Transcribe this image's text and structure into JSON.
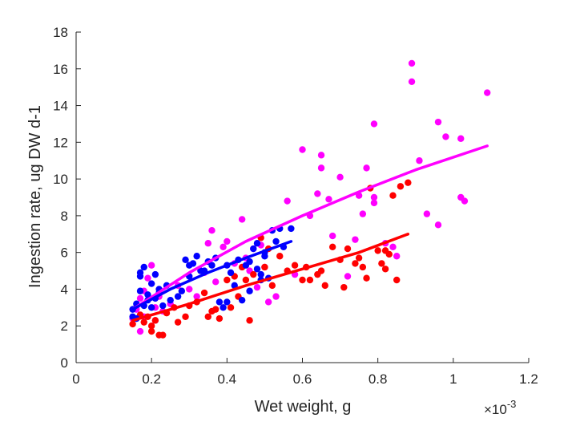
{
  "chart_data": {
    "type": "scatter",
    "title": "",
    "xlabel": "Wet weight, g",
    "ylabel": "Ingestion rate, ug DW d-1",
    "x_exponent_label": "×10",
    "x_exponent_power": "-3",
    "xlim": [
      0,
      1.2
    ],
    "ylim": [
      0,
      18
    ],
    "x_ticks": [
      "0",
      "0.2",
      "0.4",
      "0.6",
      "0.8",
      "1",
      "1.2"
    ],
    "y_ticks": [
      "0",
      "2",
      "4",
      "6",
      "8",
      "10",
      "12",
      "14",
      "16",
      "18"
    ],
    "grid": false,
    "legend": "none",
    "series": [
      {
        "color": "#ff00ff",
        "points": [
          [
            0.15,
            2.4
          ],
          [
            0.16,
            2.9
          ],
          [
            0.17,
            1.7
          ],
          [
            0.17,
            3.5
          ],
          [
            0.18,
            2.5
          ],
          [
            0.18,
            3.9
          ],
          [
            0.19,
            4.6
          ],
          [
            0.2,
            5.3
          ],
          [
            0.21,
            2.3
          ],
          [
            0.21,
            3.0
          ],
          [
            0.22,
            3.6
          ],
          [
            0.23,
            2.8
          ],
          [
            0.25,
            3.2
          ],
          [
            0.27,
            4.2
          ],
          [
            0.3,
            4.0
          ],
          [
            0.32,
            3.6
          ],
          [
            0.34,
            4.9
          ],
          [
            0.35,
            6.5
          ],
          [
            0.36,
            7.2
          ],
          [
            0.37,
            4.4
          ],
          [
            0.39,
            6.3
          ],
          [
            0.4,
            6.6
          ],
          [
            0.42,
            5.4
          ],
          [
            0.44,
            7.8
          ],
          [
            0.45,
            5.7
          ],
          [
            0.47,
            6.2
          ],
          [
            0.48,
            4.1
          ],
          [
            0.49,
            6.4
          ],
          [
            0.51,
            3.3
          ],
          [
            0.53,
            3.6
          ],
          [
            0.56,
            8.8
          ],
          [
            0.58,
            4.8
          ],
          [
            0.6,
            11.6
          ],
          [
            0.62,
            8.0
          ],
          [
            0.64,
            9.2
          ],
          [
            0.65,
            11.3
          ],
          [
            0.65,
            10.6
          ],
          [
            0.67,
            8.9
          ],
          [
            0.68,
            6.9
          ],
          [
            0.7,
            10.1
          ],
          [
            0.72,
            4.7
          ],
          [
            0.74,
            6.7
          ],
          [
            0.75,
            9.1
          ],
          [
            0.76,
            8.1
          ],
          [
            0.77,
            10.6
          ],
          [
            0.79,
            8.7
          ],
          [
            0.79,
            9.0
          ],
          [
            0.79,
            13.0
          ],
          [
            0.85,
            5.8
          ],
          [
            0.89,
            16.3
          ],
          [
            0.89,
            15.3
          ],
          [
            0.91,
            11.0
          ],
          [
            0.93,
            8.1
          ],
          [
            0.96,
            13.1
          ],
          [
            0.96,
            7.5
          ],
          [
            0.98,
            12.3
          ],
          [
            1.02,
            12.2
          ],
          [
            1.02,
            9.0
          ],
          [
            1.03,
            8.8
          ],
          [
            1.09,
            14.7
          ],
          [
            0.82,
            6.5
          ],
          [
            0.84,
            6.3
          ],
          [
            0.5,
            5.2
          ],
          [
            0.46,
            5.0
          ]
        ],
        "fit": [
          [
            0.15,
            2.9
          ],
          [
            0.3,
            4.9
          ],
          [
            0.45,
            6.6
          ],
          [
            0.6,
            8.0
          ],
          [
            0.75,
            9.3
          ],
          [
            0.9,
            10.5
          ],
          [
            1.09,
            11.8
          ]
        ]
      },
      {
        "color": "#ff0000",
        "points": [
          [
            0.15,
            2.1
          ],
          [
            0.16,
            2.4
          ],
          [
            0.17,
            2.6
          ],
          [
            0.18,
            2.2
          ],
          [
            0.19,
            2.5
          ],
          [
            0.2,
            1.7
          ],
          [
            0.2,
            2.0
          ],
          [
            0.21,
            2.3
          ],
          [
            0.22,
            1.5
          ],
          [
            0.23,
            1.5
          ],
          [
            0.24,
            2.7
          ],
          [
            0.26,
            3.0
          ],
          [
            0.27,
            2.2
          ],
          [
            0.29,
            2.5
          ],
          [
            0.3,
            3.1
          ],
          [
            0.32,
            3.3
          ],
          [
            0.34,
            3.8
          ],
          [
            0.35,
            2.5
          ],
          [
            0.36,
            2.8
          ],
          [
            0.37,
            2.9
          ],
          [
            0.38,
            2.4
          ],
          [
            0.4,
            4.5
          ],
          [
            0.41,
            3.0
          ],
          [
            0.42,
            4.7
          ],
          [
            0.43,
            3.6
          ],
          [
            0.44,
            5.2
          ],
          [
            0.45,
            4.5
          ],
          [
            0.46,
            2.3
          ],
          [
            0.47,
            4.8
          ],
          [
            0.49,
            6.8
          ],
          [
            0.5,
            5.2
          ],
          [
            0.51,
            6.2
          ],
          [
            0.52,
            4.2
          ],
          [
            0.54,
            5.8
          ],
          [
            0.56,
            5.0
          ],
          [
            0.58,
            5.3
          ],
          [
            0.6,
            4.5
          ],
          [
            0.61,
            5.2
          ],
          [
            0.62,
            4.5
          ],
          [
            0.64,
            4.8
          ],
          [
            0.65,
            5.0
          ],
          [
            0.66,
            4.2
          ],
          [
            0.68,
            6.3
          ],
          [
            0.7,
            5.6
          ],
          [
            0.71,
            4.1
          ],
          [
            0.72,
            6.2
          ],
          [
            0.74,
            5.4
          ],
          [
            0.76,
            5.2
          ],
          [
            0.77,
            4.6
          ],
          [
            0.78,
            9.5
          ],
          [
            0.8,
            6.1
          ],
          [
            0.81,
            5.4
          ],
          [
            0.82,
            6.1
          ],
          [
            0.83,
            5.9
          ],
          [
            0.84,
            9.1
          ],
          [
            0.85,
            4.5
          ],
          [
            0.86,
            9.6
          ],
          [
            0.88,
            9.8
          ],
          [
            0.82,
            5.1
          ],
          [
            0.75,
            5.7
          ]
        ],
        "fit": [
          [
            0.15,
            2.3
          ],
          [
            0.3,
            3.2
          ],
          [
            0.45,
            4.2
          ],
          [
            0.6,
            5.1
          ],
          [
            0.75,
            6.0
          ],
          [
            0.88,
            7.0
          ]
        ]
      },
      {
        "color": "#0000ff",
        "points": [
          [
            0.15,
            2.9
          ],
          [
            0.15,
            2.5
          ],
          [
            0.16,
            3.2
          ],
          [
            0.16,
            2.4
          ],
          [
            0.17,
            3.9
          ],
          [
            0.17,
            4.7
          ],
          [
            0.17,
            4.9
          ],
          [
            0.18,
            5.2
          ],
          [
            0.18,
            3.1
          ],
          [
            0.19,
            3.4
          ],
          [
            0.19,
            3.7
          ],
          [
            0.2,
            4.3
          ],
          [
            0.2,
            3.0
          ],
          [
            0.21,
            4.8
          ],
          [
            0.21,
            3.5
          ],
          [
            0.22,
            4.0
          ],
          [
            0.22,
            3.8
          ],
          [
            0.23,
            3.1
          ],
          [
            0.24,
            4.2
          ],
          [
            0.25,
            3.4
          ],
          [
            0.27,
            3.6
          ],
          [
            0.28,
            3.9
          ],
          [
            0.29,
            5.6
          ],
          [
            0.3,
            5.3
          ],
          [
            0.3,
            4.7
          ],
          [
            0.31,
            5.4
          ],
          [
            0.32,
            5.8
          ],
          [
            0.33,
            5.0
          ],
          [
            0.34,
            5.0
          ],
          [
            0.35,
            5.5
          ],
          [
            0.36,
            5.3
          ],
          [
            0.37,
            5.7
          ],
          [
            0.38,
            3.3
          ],
          [
            0.39,
            3.0
          ],
          [
            0.4,
            5.3
          ],
          [
            0.4,
            3.3
          ],
          [
            0.41,
            4.9
          ],
          [
            0.42,
            4.2
          ],
          [
            0.43,
            5.6
          ],
          [
            0.44,
            3.4
          ],
          [
            0.45,
            5.3
          ],
          [
            0.46,
            5.5
          ],
          [
            0.46,
            3.9
          ],
          [
            0.47,
            6.2
          ],
          [
            0.48,
            6.5
          ],
          [
            0.49,
            4.8
          ],
          [
            0.49,
            4.5
          ],
          [
            0.5,
            5.8
          ],
          [
            0.5,
            6.0
          ],
          [
            0.51,
            4.6
          ],
          [
            0.52,
            7.2
          ],
          [
            0.53,
            6.6
          ],
          [
            0.54,
            7.3
          ],
          [
            0.55,
            6.3
          ],
          [
            0.57,
            7.3
          ],
          [
            0.48,
            5.1
          ]
        ],
        "fit": [
          [
            0.15,
            2.9
          ],
          [
            0.25,
            4.0
          ],
          [
            0.35,
            4.9
          ],
          [
            0.45,
            5.7
          ],
          [
            0.57,
            6.6
          ]
        ]
      }
    ]
  }
}
